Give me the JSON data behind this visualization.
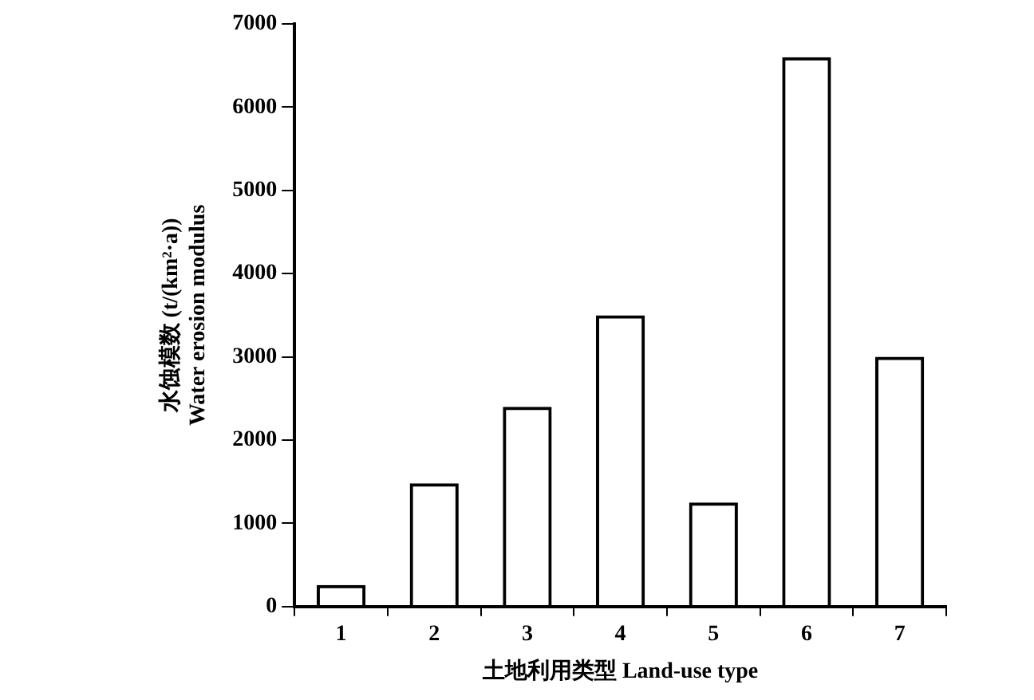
{
  "chart_data": {
    "type": "bar",
    "xlabel": "土地利用类型 Land-use type",
    "ylabel": "水蚀模数 (t/(km²·a))\nWater erosion modulus",
    "categories": [
      "1",
      "2",
      "3",
      "4",
      "5",
      "6",
      "7"
    ],
    "values": [
      260,
      1480,
      2400,
      3500,
      1250,
      6600,
      3000
    ],
    "color": "#000000",
    "ylim": [
      0,
      7000
    ],
    "yticks": [
      0,
      1000,
      2000,
      3000,
      4000,
      5000,
      6000,
      7000
    ],
    "grid": false,
    "legend": false
  }
}
